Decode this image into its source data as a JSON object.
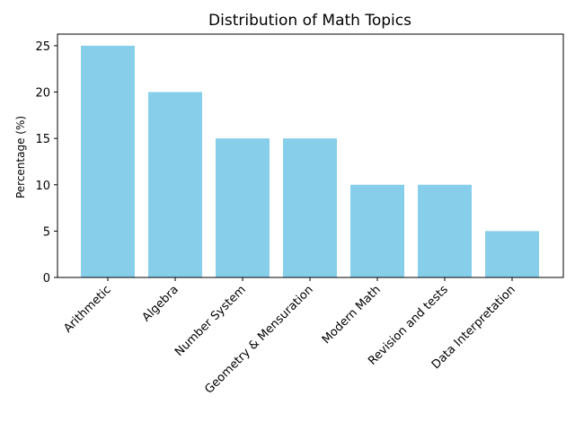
{
  "chart_data": {
    "type": "bar",
    "title": "Distribution of Math Topics",
    "xlabel": "",
    "ylabel": "Percentage (%)",
    "categories": [
      "Arithmetic",
      "Algebra",
      "Number System",
      "Geometry & Mensuration",
      "Modern Math",
      "Revision and tests",
      "Data Interpretation"
    ],
    "values": [
      25,
      20,
      15,
      15,
      10,
      10,
      5
    ],
    "ylim": [
      0,
      26.25
    ],
    "yticks": [
      0,
      5,
      10,
      15,
      20,
      25
    ],
    "bar_color": "#87ceeb",
    "grid": false,
    "legend": "none"
  }
}
